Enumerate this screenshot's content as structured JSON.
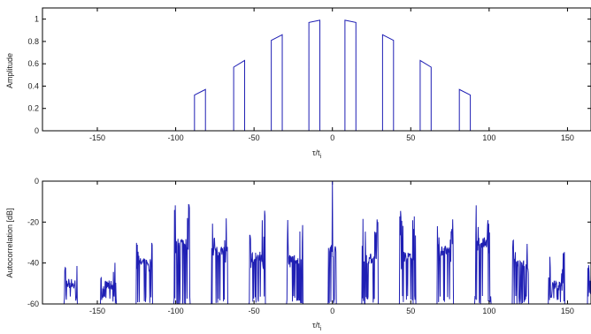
{
  "chart_data": [
    {
      "type": "line",
      "title": "",
      "xlabel": "τ/t",
      "xlabel_sub": "i",
      "ylabel": "Amplitude",
      "xlim": [
        -185,
        165
      ],
      "ylim": [
        0,
        1.1
      ],
      "xticks": [
        -150,
        -100,
        -50,
        0,
        50,
        100,
        150
      ],
      "yticks": [
        0,
        0.2,
        0.4,
        0.6,
        0.8,
        1
      ],
      "grid": false,
      "line_color": "#1f1fb4",
      "pulses": [
        {
          "x_start": -88,
          "x_end": -81,
          "y_start": 0.32,
          "y_end": 0.37
        },
        {
          "x_start": -63,
          "x_end": -56,
          "y_start": 0.57,
          "y_end": 0.63
        },
        {
          "x_start": -39,
          "x_end": -32,
          "y_start": 0.81,
          "y_end": 0.86
        },
        {
          "x_start": -15,
          "x_end": -8,
          "y_start": 0.97,
          "y_end": 0.99
        },
        {
          "x_start": 8,
          "x_end": 15,
          "y_start": 0.99,
          "y_end": 0.97
        },
        {
          "x_start": 32,
          "x_end": 39,
          "y_start": 0.86,
          "y_end": 0.81
        },
        {
          "x_start": 56,
          "x_end": 63,
          "y_start": 0.63,
          "y_end": 0.57
        },
        {
          "x_start": 81,
          "x_end": 88,
          "y_start": 0.37,
          "y_end": 0.32
        }
      ]
    },
    {
      "type": "line",
      "title": "",
      "xlabel": "τ/t",
      "xlabel_sub": "i",
      "ylabel": "Autocorrelation [dB]",
      "xlim": [
        -185,
        165
      ],
      "ylim": [
        -60,
        0
      ],
      "xticks": [
        -150,
        -100,
        -50,
        0,
        50,
        100,
        150
      ],
      "yticks": [
        0,
        -20,
        -40,
        -60
      ],
      "grid": false,
      "line_color": "#1f1fb4",
      "floor_db": -60,
      "peak": {
        "x": 0,
        "y": 0
      },
      "lobes": [
        {
          "center": -167,
          "half_width": 4,
          "spike_db": [
            -44,
            -45
          ],
          "plateau_db": -50
        },
        {
          "center": -143,
          "half_width": 5,
          "spike_db": [
            -38,
            -40
          ],
          "plateau_db": -51
        },
        {
          "center": -120,
          "half_width": 5,
          "spike_db": [
            -32,
            -34
          ],
          "plateau_db": -40
        },
        {
          "center": -96,
          "half_width": 5,
          "spike_db": [
            -15,
            -17
          ],
          "plateau_db": -30
        },
        {
          "center": -72,
          "half_width": 5,
          "spike_db": [
            -21,
            -24
          ],
          "plateau_db": -34
        },
        {
          "center": -48,
          "half_width": 5,
          "spike_db": [
            -16,
            -18
          ],
          "plateau_db": -37
        },
        {
          "center": -24,
          "half_width": 5,
          "spike_db": [
            -20,
            -22
          ],
          "plateau_db": -38
        },
        {
          "center": 24,
          "half_width": 5,
          "spike_db": [
            -20,
            -22
          ],
          "plateau_db": -38
        },
        {
          "center": 48,
          "half_width": 5,
          "spike_db": [
            -16,
            -18
          ],
          "plateau_db": -37
        },
        {
          "center": 72,
          "half_width": 5,
          "spike_db": [
            -21,
            -24
          ],
          "plateau_db": -34
        },
        {
          "center": 96,
          "half_width": 5,
          "spike_db": [
            -15,
            -17
          ],
          "plateau_db": -30
        },
        {
          "center": 120,
          "half_width": 5,
          "spike_db": [
            -32,
            -34
          ],
          "plateau_db": -40
        },
        {
          "center": 143,
          "half_width": 5,
          "spike_db": [
            -38,
            -40
          ],
          "plateau_db": -51
        },
        {
          "center": 167,
          "half_width": 4,
          "spike_db": [
            -44,
            -45
          ],
          "plateau_db": -50
        }
      ],
      "center_lobe": {
        "half_width": 2.5,
        "plateau_db": -34
      }
    }
  ]
}
